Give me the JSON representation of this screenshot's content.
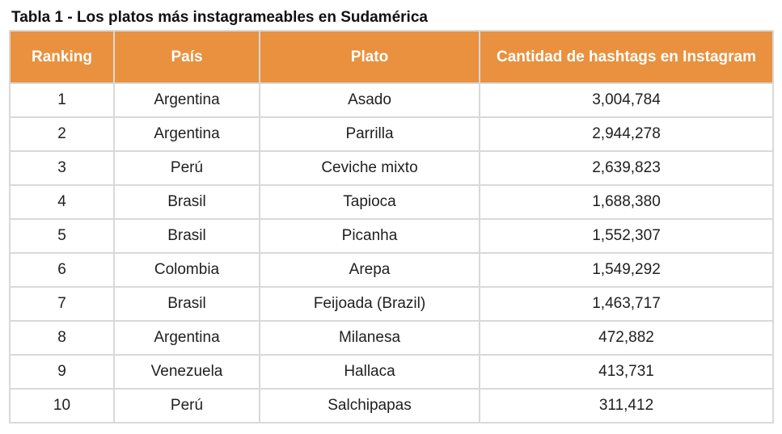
{
  "title": "Tabla 1 - Los platos más instagrameables en Sudamérica",
  "colors": {
    "header_bg": "#e9913e",
    "header_text": "#ffffff",
    "border": "#d9d9d9"
  },
  "table": {
    "headers": [
      "Ranking",
      "País",
      "Plato",
      "Cantidad de  hashtags en Instagram"
    ],
    "rows": [
      [
        "1",
        "Argentina",
        "Asado",
        "3,004,784"
      ],
      [
        "2",
        "Argentina",
        "Parrilla",
        "2,944,278"
      ],
      [
        "3",
        "Perú",
        "Ceviche mixto",
        "2,639,823"
      ],
      [
        "4",
        "Brasil",
        "Tapioca",
        "1,688,380"
      ],
      [
        "5",
        "Brasil",
        "Picanha",
        "1,552,307"
      ],
      [
        "6",
        "Colombia",
        "Arepa",
        "1,549,292"
      ],
      [
        "7",
        "Brasil",
        "Feijoada (Brazil)",
        "1,463,717"
      ],
      [
        "8",
        "Argentina",
        "Milanesa",
        "472,882"
      ],
      [
        "9",
        "Venezuela",
        "Hallaca",
        "413,731"
      ],
      [
        "10",
        "Perú",
        "Salchipapas",
        "311,412"
      ]
    ]
  }
}
